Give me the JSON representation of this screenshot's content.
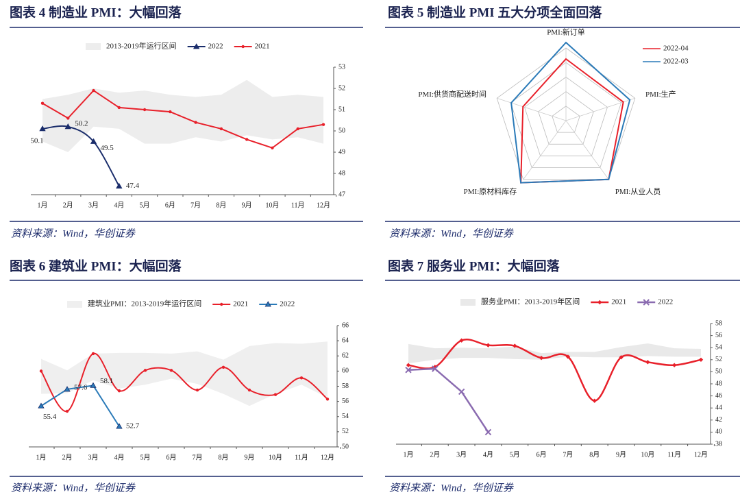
{
  "chart_data": [
    {
      "type": "line",
      "title": "图表 4   制造业 PMI：大幅回落",
      "source": "资料来源：Wind，华创证券",
      "categories": [
        "1月",
        "2月",
        "3月",
        "4月",
        "5月",
        "6月",
        "7月",
        "8月",
        "9月",
        "10月",
        "11月",
        "12月"
      ],
      "ylim": [
        47,
        53
      ],
      "yticks": [
        47,
        48,
        49,
        50,
        51,
        52,
        53
      ],
      "series": [
        {
          "name": "2013-2019年运行区间",
          "kind": "band",
          "color": "#ededed",
          "low": [
            49.5,
            49.0,
            50.2,
            50.1,
            49.4,
            49.4,
            49.7,
            49.5,
            49.8,
            49.6,
            49.7,
            49.4
          ],
          "high": [
            51.5,
            51.7,
            52.0,
            51.8,
            51.9,
            51.7,
            51.6,
            51.7,
            52.4,
            51.6,
            51.7,
            51.6
          ]
        },
        {
          "name": "2022",
          "color": "#1a2d6b",
          "marker": "triangle",
          "smooth": true,
          "data_labels": true,
          "values": [
            50.1,
            50.2,
            49.5,
            47.4,
            null,
            null,
            null,
            null,
            null,
            null,
            null,
            null
          ]
        },
        {
          "name": "2021",
          "color": "#e8202a",
          "marker": "circle",
          "smooth": false,
          "values": [
            51.3,
            50.6,
            51.9,
            51.1,
            51.0,
            50.9,
            50.4,
            50.1,
            49.6,
            49.2,
            50.1,
            50.3
          ]
        }
      ]
    },
    {
      "type": "radar",
      "title": "图表 5   制造业 PMI 五大分项全面回落",
      "source": "资料来源：Wind，华创证券",
      "axes": [
        "PMI:新订单",
        "PMI:生产",
        "PMI:从业人员",
        "PMI:原材料库存",
        "PMI:供货商配送时间"
      ],
      "rlim": [
        0,
        60
      ],
      "series": [
        {
          "name": "2022-04",
          "color": "#e8202a",
          "values": [
            45,
            44,
            53,
            56,
            33
          ]
        },
        {
          "name": "2022-03",
          "color": "#2a7ab8",
          "values": [
            57,
            49,
            53,
            56,
            42
          ]
        }
      ]
    },
    {
      "type": "line",
      "title": "图表 6   建筑业 PMI：大幅回落",
      "source": "资料来源：Wind，华创证券",
      "categories": [
        "1月",
        "2月",
        "3月",
        "4月",
        "5月",
        "6月",
        "7月",
        "8月",
        "9月",
        "10月",
        "11月",
        "12月"
      ],
      "ylim": [
        50,
        66
      ],
      "yticks": [
        50,
        52,
        54,
        56,
        58,
        60,
        62,
        64,
        66
      ],
      "series": [
        {
          "name": "建筑业PMI：2013-2019年运行区间",
          "kind": "band",
          "color": "#efefef",
          "low": [
            57.0,
            57.1,
            58.8,
            57.7,
            58.2,
            59.0,
            58.3,
            57.0,
            55.4,
            57.0,
            58.2,
            56.5
          ],
          "high": [
            61.6,
            60.1,
            62.3,
            62.4,
            62.4,
            62.3,
            62.6,
            61.5,
            63.3,
            63.7,
            63.6,
            63.9
          ]
        },
        {
          "name": "2021",
          "color": "#e8202a",
          "marker": "circle",
          "smooth": true,
          "values": [
            60.0,
            54.7,
            62.3,
            57.4,
            60.1,
            60.1,
            57.5,
            60.5,
            57.5,
            56.9,
            59.1,
            56.3
          ]
        },
        {
          "name": "2022",
          "color": "#2a7ab8",
          "marker": "triangle",
          "smooth": false,
          "data_labels": true,
          "values": [
            55.4,
            57.6,
            58.1,
            52.7,
            null,
            null,
            null,
            null,
            null,
            null,
            null,
            null
          ]
        }
      ]
    },
    {
      "type": "line",
      "title": "图表 7   服务业 PMI：大幅回落",
      "source": "资料来源：Wind，华创证券",
      "categories": [
        "1月",
        "2月",
        "3月",
        "4月",
        "5月",
        "6月",
        "7月",
        "8月",
        "9月",
        "10月",
        "11月",
        "12月"
      ],
      "ylim": [
        38,
        58
      ],
      "yticks": [
        38,
        40,
        42,
        44,
        46,
        48,
        50,
        52,
        54,
        56,
        58
      ],
      "series": [
        {
          "name": "服务业PMI：2013-2019年区间",
          "kind": "band",
          "color": "#e9e9e9",
          "low": [
            51.4,
            52.0,
            52.3,
            52.3,
            52.1,
            52.0,
            52.5,
            52.4,
            52.4,
            52.6,
            52.5,
            52.5
          ],
          "high": [
            54.6,
            53.9,
            54.0,
            53.9,
            54.2,
            53.1,
            53.3,
            53.3,
            54.1,
            54.7,
            53.9,
            53.8
          ]
        },
        {
          "name": "2021",
          "color": "#e8202a",
          "marker": "diamond",
          "smooth": true,
          "width": 2.5,
          "values": [
            51.1,
            50.8,
            55.2,
            54.4,
            54.3,
            52.3,
            52.5,
            45.2,
            52.4,
            51.6,
            51.1,
            52.0
          ]
        },
        {
          "name": "2022",
          "color": "#8a6bb0",
          "marker": "x",
          "smooth": false,
          "width": 2.5,
          "values": [
            50.3,
            50.5,
            46.7,
            40.0,
            null,
            null,
            null,
            null,
            null,
            null,
            null,
            null
          ]
        }
      ]
    }
  ]
}
